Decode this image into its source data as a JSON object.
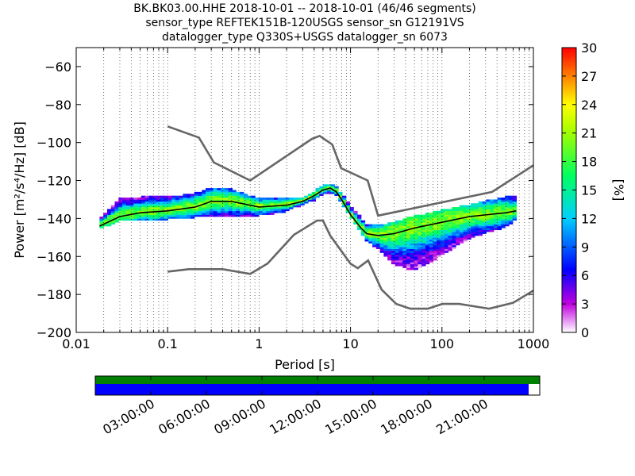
{
  "header": {
    "line1": "BK.BK03.00.HHE   2018-10-01 -- 2018-10-01  (46/46 segments)",
    "line2": "sensor_type REFTEK151B-120USGS sensor_sn G12191VS",
    "line3": "datalogger_type Q330S+USGS datalogger_sn 6073"
  },
  "chart_data": {
    "type": "heatmap",
    "xlabel": "Period [s]",
    "ylabel": "Power",
    "ylabel_unit": "[m²/s⁴/Hz] [dB]",
    "x_scale": "log",
    "xlim": [
      0.01,
      1000
    ],
    "ylim": [
      -200,
      -50
    ],
    "x_ticks": [
      0.01,
      0.1,
      1,
      10,
      100,
      1000
    ],
    "x_tick_labels": [
      "0.01",
      "0.1",
      "1",
      "10",
      "100",
      "1000"
    ],
    "y_ticks": [
      -200,
      -180,
      -160,
      -140,
      -120,
      -100,
      -80,
      -60
    ],
    "y_tick_labels": [
      "−200",
      "−180",
      "−160",
      "−140",
      "−120",
      "−100",
      "−80",
      "−60"
    ],
    "grid": "dotted vertical",
    "colorbar": {
      "label": "[%]",
      "range": [
        0,
        30
      ],
      "ticks": [
        0,
        3,
        6,
        9,
        12,
        15,
        18,
        21,
        24,
        27,
        30
      ],
      "tick_labels": [
        "0",
        "3",
        "6",
        "9",
        "12",
        "15",
        "18",
        "21",
        "24",
        "27",
        "30"
      ]
    },
    "noise_models": {
      "high_noise_model": {
        "x": [
          0.1,
          0.22,
          0.32,
          0.8,
          3.8,
          4.6,
          6.3,
          7.9,
          15.4,
          20,
          354,
          1000
        ],
        "y": [
          -91.5,
          -97.4,
          -110.5,
          -120,
          -98,
          -96.5,
          -101,
          -113.5,
          -120,
          -138.5,
          -126,
          -112
        ]
      },
      "low_noise_model": {
        "x": [
          0.1,
          0.17,
          0.4,
          0.8,
          1.24,
          2.4,
          4.3,
          5,
          6,
          10,
          12,
          15.6,
          21.9,
          31.6,
          45,
          70,
          101,
          154,
          328,
          600,
          1000
        ],
        "y": [
          -168,
          -166.7,
          -166.7,
          -169.2,
          -163.7,
          -148.6,
          -141.1,
          -141.1,
          -149,
          -163.8,
          -166.2,
          -162.1,
          -177.5,
          -185,
          -187.5,
          -187.5,
          -185,
          -185,
          -187.5,
          -184.4,
          -178
        ]
      }
    },
    "mode_curve": {
      "x": [
        0.018,
        0.03,
        0.05,
        0.1,
        0.2,
        0.3,
        0.5,
        1,
        2,
        3,
        4,
        5,
        6,
        7,
        8,
        10,
        13,
        15,
        20,
        30,
        50,
        100,
        200,
        500,
        650
      ],
      "y": [
        -144,
        -139,
        -137,
        -136,
        -134,
        -131,
        -131,
        -134,
        -133,
        -131,
        -128,
        -125,
        -124,
        -126,
        -130,
        -138,
        -145,
        -148,
        -149,
        -148,
        -145,
        -142,
        -139,
        -137,
        -136
      ]
    },
    "density_envelope": {
      "x": [
        0.018,
        0.03,
        0.05,
        0.1,
        0.2,
        0.3,
        0.5,
        1,
        2,
        3,
        4,
        5,
        6,
        7,
        8,
        10,
        13,
        15,
        20,
        30,
        50,
        100,
        200,
        500,
        650
      ],
      "upper": [
        -140,
        -130,
        -129,
        -129,
        -127,
        -124,
        -125,
        -130,
        -130,
        -129,
        -126,
        -123,
        -122,
        -124,
        -127,
        -134,
        -140,
        -143,
        -144,
        -142,
        -139,
        -136,
        -133,
        -129,
        -129
      ],
      "lower": [
        -146,
        -142,
        -141,
        -141,
        -140,
        -139,
        -139,
        -139,
        -137,
        -133,
        -131,
        -128,
        -127,
        -129,
        -132,
        -140,
        -148,
        -152,
        -157,
        -165,
        -168,
        -160,
        -151,
        -145,
        -141
      ]
    },
    "timeline": {
      "tick_labels": [
        "03:00:00",
        "06:00:00",
        "09:00:00",
        "12:00:00",
        "15:00:00",
        "18:00:00",
        "21:00:00"
      ],
      "data_coverage_fraction": 1.0,
      "psd_coverage_fraction": 0.975,
      "colors": {
        "data": "#008000",
        "psd": "#0000ff"
      }
    },
    "colors": {
      "noise_model": "#666666",
      "mode": "#000000"
    }
  }
}
